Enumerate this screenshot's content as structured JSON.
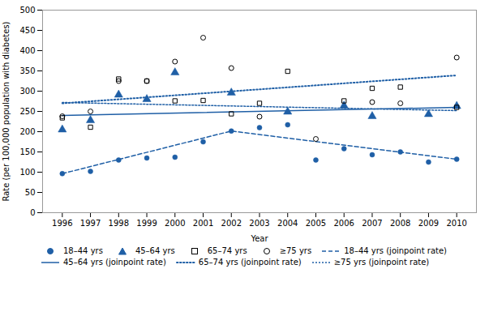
{
  "chart_data": {
    "type": "scatter",
    "xlabel": "Year",
    "ylabel": "Rate (per 100,000 population with diabetes)",
    "xlim": [
      1995.3,
      2010.7
    ],
    "xticks": [
      1996,
      1997,
      1998,
      1999,
      2000,
      2001,
      2002,
      2003,
      2004,
      2005,
      2006,
      2007,
      2008,
      2009,
      2010
    ],
    "ylim": [
      0,
      500
    ],
    "yticks": [
      0,
      50,
      100,
      150,
      200,
      250,
      300,
      350,
      400,
      450,
      500
    ],
    "grid": false,
    "series": [
      {
        "name": "18–44 yrs",
        "type": "scatter",
        "marker": "circle",
        "color": "#1f5fa6",
        "x": [
          1996,
          1997,
          1998,
          1999,
          2000,
          2001,
          2002,
          2003,
          2004,
          2005,
          2006,
          2007,
          2008,
          2009,
          2010
        ],
        "values": [
          96.4,
          102,
          130,
          135,
          137,
          175,
          201.6,
          210,
          217,
          130,
          158,
          143,
          150,
          125,
          132
        ]
      },
      {
        "name": "45–64 yrs",
        "type": "scatter",
        "marker": "triangle",
        "color": "#1f5fa6",
        "x": [
          1996,
          1997,
          1998,
          1999,
          2000,
          2001,
          2002,
          2003,
          2004,
          2005,
          2006,
          2007,
          2008,
          2009,
          2010
        ],
        "values": [
          205,
          228,
          291,
          280,
          346,
          null,
          296,
          null,
          249,
          null,
          264,
          238,
          null,
          243,
          263
        ]
      },
      {
        "name": "65–74 yrs",
        "type": "scatter",
        "marker": "square-open",
        "color": "#000000",
        "x": [
          1996,
          1997,
          1998,
          1999,
          2000,
          2001,
          2002,
          2003,
          2004,
          2005,
          2006,
          2007,
          2008,
          2009,
          2010
        ],
        "values": [
          234,
          211,
          330,
          325,
          276,
          277,
          244,
          270,
          349,
          null,
          276,
          307,
          310,
          null,
          260
        ]
      },
      {
        "name": "≥75 yrs",
        "type": "scatter",
        "marker": "circle-open",
        "color": "#000000",
        "x": [
          1996,
          1997,
          1998,
          1999,
          2000,
          2001,
          2002,
          2003,
          2004,
          2005,
          2006,
          2007,
          2008,
          2009,
          2010
        ],
        "values": [
          238,
          250,
          325,
          325,
          373,
          432,
          357,
          237,
          null,
          182,
          null,
          273,
          270,
          null,
          383
        ]
      },
      {
        "name": "18–44 yrs (joinpoint rate)",
        "type": "line",
        "line_style": "dashed",
        "color": "#1f5fa6",
        "x": [
          1996,
          2002,
          2010
        ],
        "values": [
          96.4,
          201.6,
          132.0
        ]
      },
      {
        "name": "45–64 yrs (joinpoint rate)",
        "type": "line",
        "line_style": "solid",
        "color": "#1f5fa6",
        "x": [
          1996,
          2010
        ],
        "values": [
          240,
          260
        ]
      },
      {
        "name": "65–74 yrs (joinpoint rate)",
        "type": "line",
        "line_style": "dotted",
        "color": "#1f5fa6",
        "x": [
          1996,
          2010
        ],
        "values": [
          270,
          339
        ]
      },
      {
        "name": "≥75 yrs (joinpoint rate)",
        "type": "line",
        "line_style": "short-dashed",
        "color": "#1f5fa6",
        "x": [
          1996,
          2010
        ],
        "values": [
          272,
          252
        ]
      }
    ]
  }
}
